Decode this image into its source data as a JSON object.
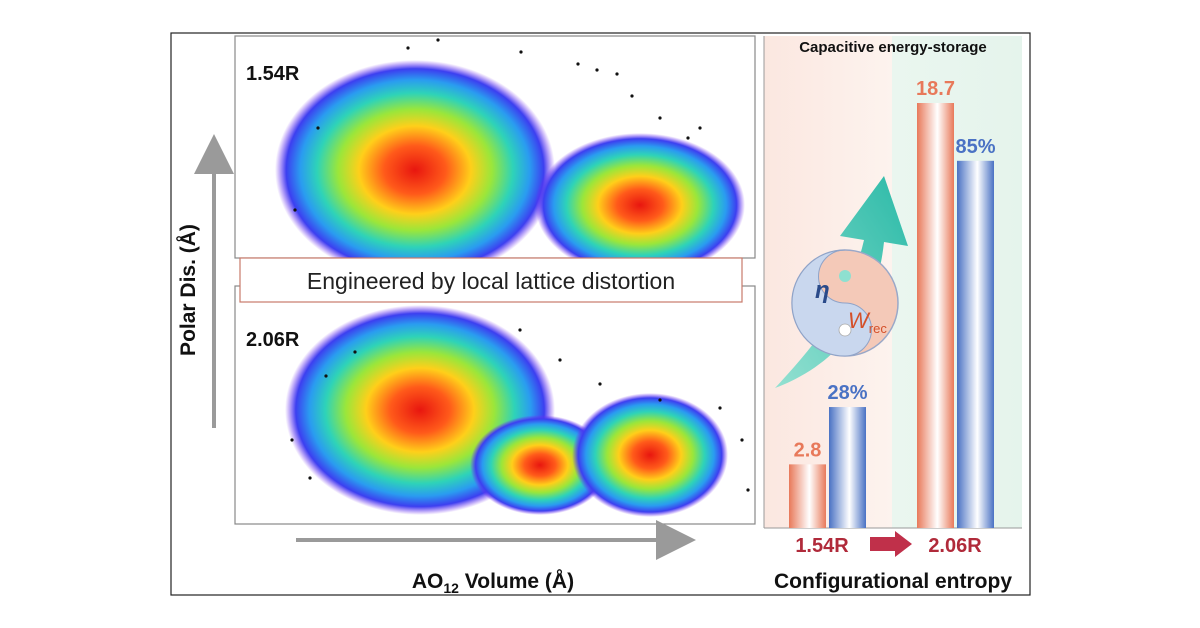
{
  "left_panel": {
    "y_axis_label": "Polar Dis. (Å)",
    "x_axis_label_prefix": "AO",
    "x_axis_label_sub": "12",
    "x_axis_label_suffix": " Volume (Å)",
    "top_plot_label": "1.54R",
    "bottom_plot_label": "2.06R",
    "banner_text": "Engineered by local lattice distortion"
  },
  "right_panel": {
    "title": "Capacitive energy-storage",
    "x_title": "Configurational entropy",
    "eta_symbol": "η",
    "w_symbol": "W",
    "w_subscript": "rec"
  },
  "chart_data": {
    "type": "bar",
    "categories": [
      "1.54R",
      "2.06R"
    ],
    "series": [
      {
        "values": [
          2.8,
          18.7
        ],
        "labels": [
          "2.8",
          "18.7"
        ],
        "color": "#e8795a"
      },
      {
        "values": [
          28,
          85
        ],
        "labels": [
          "28%",
          "85%"
        ],
        "color": "#4a72c4"
      }
    ],
    "colors": {
      "categories": "#b02a3a",
      "arrow": "#c0304a"
    }
  }
}
